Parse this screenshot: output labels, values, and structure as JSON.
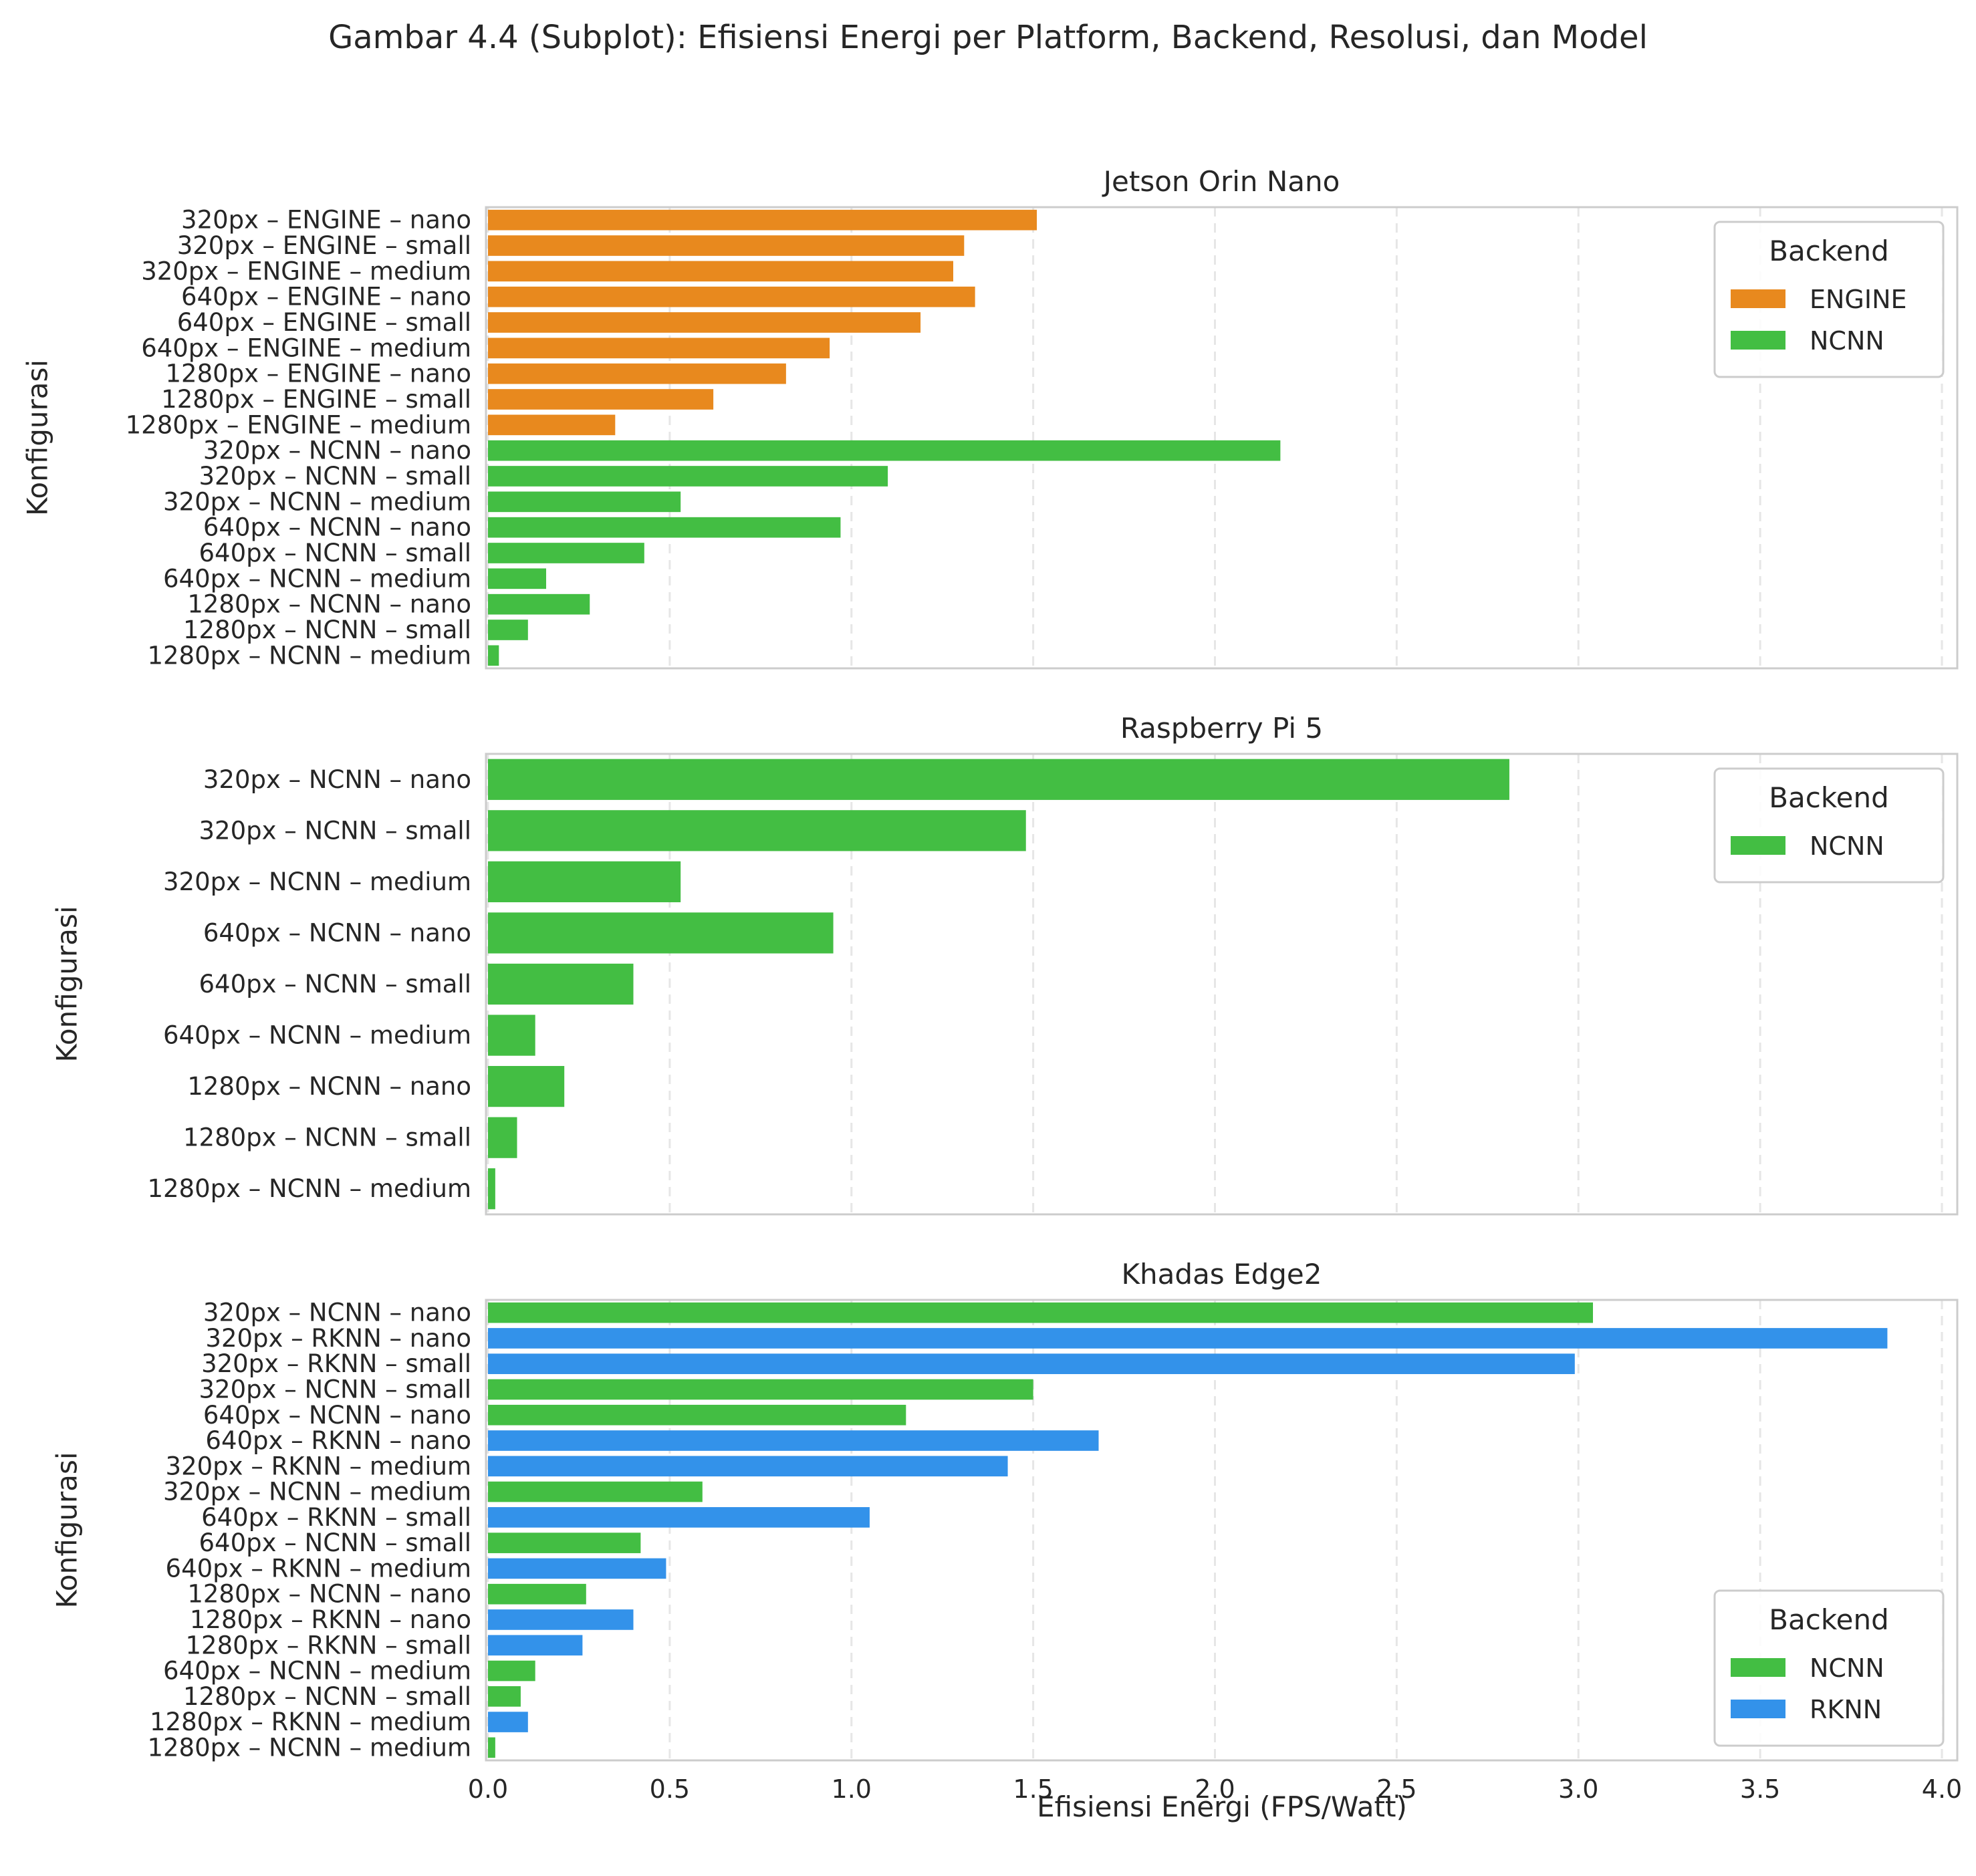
{
  "figure_title": "Gambar 4.4 (Subplot): Efisiensi Energi per Platform, Backend, Resolusi, dan Model",
  "xlabel": "Efisiensi Energi (FPS/Watt)",
  "colors": {
    "ENGINE": "#E8891E",
    "NCNN": "#43BE43",
    "RKNN": "#3392EA"
  },
  "chart_data": [
    {
      "type": "bar",
      "orientation": "horizontal",
      "title": "Jetson Orin Nano",
      "ylabel": "Konfigurasi",
      "xlim": [
        0,
        4.0
      ],
      "xticks": [
        "0.0",
        "0.5",
        "1.0",
        "1.5",
        "2.0",
        "2.5",
        "3.0",
        "3.5",
        "4.0"
      ],
      "grid": "x-dashed",
      "legend": {
        "title": "Backend",
        "position": "top-right",
        "entries": [
          "ENGINE",
          "NCNN"
        ]
      },
      "bars": [
        {
          "label": "320px – ENGINE – nano",
          "value": 1.51,
          "backend": "ENGINE"
        },
        {
          "label": "320px – ENGINE – small",
          "value": 1.31,
          "backend": "ENGINE"
        },
        {
          "label": "320px – ENGINE – medium",
          "value": 1.28,
          "backend": "ENGINE"
        },
        {
          "label": "640px – ENGINE – nano",
          "value": 1.34,
          "backend": "ENGINE"
        },
        {
          "label": "640px – ENGINE – small",
          "value": 1.19,
          "backend": "ENGINE"
        },
        {
          "label": "640px – ENGINE – medium",
          "value": 0.94,
          "backend": "ENGINE"
        },
        {
          "label": "1280px – ENGINE – nano",
          "value": 0.82,
          "backend": "ENGINE"
        },
        {
          "label": "1280px – ENGINE – small",
          "value": 0.62,
          "backend": "ENGINE"
        },
        {
          "label": "1280px – ENGINE – medium",
          "value": 0.35,
          "backend": "ENGINE"
        },
        {
          "label": "320px – NCNN – nano",
          "value": 2.18,
          "backend": "NCNN"
        },
        {
          "label": "320px – NCNN – small",
          "value": 1.1,
          "backend": "NCNN"
        },
        {
          "label": "320px – NCNN – medium",
          "value": 0.53,
          "backend": "NCNN"
        },
        {
          "label": "640px – NCNN – nano",
          "value": 0.97,
          "backend": "NCNN"
        },
        {
          "label": "640px – NCNN – small",
          "value": 0.43,
          "backend": "NCNN"
        },
        {
          "label": "640px – NCNN – medium",
          "value": 0.16,
          "backend": "NCNN"
        },
        {
          "label": "1280px – NCNN – nano",
          "value": 0.28,
          "backend": "NCNN"
        },
        {
          "label": "1280px – NCNN – small",
          "value": 0.11,
          "backend": "NCNN"
        },
        {
          "label": "1280px – NCNN – medium",
          "value": 0.03,
          "backend": "NCNN"
        }
      ]
    },
    {
      "type": "bar",
      "orientation": "horizontal",
      "title": "Raspberry Pi 5",
      "ylabel": "Konfigurasi",
      "xlim": [
        0,
        4.0
      ],
      "grid": "x-dashed",
      "legend": {
        "title": "Backend",
        "position": "top-right",
        "entries": [
          "NCNN"
        ]
      },
      "bars": [
        {
          "label": "320px – NCNN – nano",
          "value": 2.81,
          "backend": "NCNN"
        },
        {
          "label": "320px – NCNN – small",
          "value": 1.48,
          "backend": "NCNN"
        },
        {
          "label": "320px – NCNN – medium",
          "value": 0.53,
          "backend": "NCNN"
        },
        {
          "label": "640px – NCNN – nano",
          "value": 0.95,
          "backend": "NCNN"
        },
        {
          "label": "640px – NCNN – small",
          "value": 0.4,
          "backend": "NCNN"
        },
        {
          "label": "640px – NCNN – medium",
          "value": 0.13,
          "backend": "NCNN"
        },
        {
          "label": "1280px – NCNN – nano",
          "value": 0.21,
          "backend": "NCNN"
        },
        {
          "label": "1280px – NCNN – small",
          "value": 0.08,
          "backend": "NCNN"
        },
        {
          "label": "1280px – NCNN – medium",
          "value": 0.02,
          "backend": "NCNN"
        }
      ]
    },
    {
      "type": "bar",
      "orientation": "horizontal",
      "title": "Khadas Edge2",
      "ylabel": "Konfigurasi",
      "xlim": [
        0,
        4.0
      ],
      "grid": "x-dashed",
      "legend": {
        "title": "Backend",
        "position": "bottom-right",
        "entries": [
          "NCNN",
          "RKNN"
        ]
      },
      "bars": [
        {
          "label": "320px – NCNN – nano",
          "value": 3.04,
          "backend": "NCNN"
        },
        {
          "label": "320px – RKNN – nano",
          "value": 3.85,
          "backend": "RKNN"
        },
        {
          "label": "320px – RKNN – small",
          "value": 2.99,
          "backend": "RKNN"
        },
        {
          "label": "320px – NCNN – small",
          "value": 1.5,
          "backend": "NCNN"
        },
        {
          "label": "640px – NCNN – nano",
          "value": 1.15,
          "backend": "NCNN"
        },
        {
          "label": "640px – RKNN – nano",
          "value": 1.68,
          "backend": "RKNN"
        },
        {
          "label": "320px – RKNN – medium",
          "value": 1.43,
          "backend": "RKNN"
        },
        {
          "label": "320px – NCNN – medium",
          "value": 0.59,
          "backend": "NCNN"
        },
        {
          "label": "640px – RKNN – small",
          "value": 1.05,
          "backend": "RKNN"
        },
        {
          "label": "640px – NCNN – small",
          "value": 0.42,
          "backend": "NCNN"
        },
        {
          "label": "640px – RKNN – medium",
          "value": 0.49,
          "backend": "RKNN"
        },
        {
          "label": "1280px – NCNN – nano",
          "value": 0.27,
          "backend": "NCNN"
        },
        {
          "label": "1280px – RKNN – nano",
          "value": 0.4,
          "backend": "RKNN"
        },
        {
          "label": "1280px – RKNN – small",
          "value": 0.26,
          "backend": "RKNN"
        },
        {
          "label": "640px – NCNN – medium",
          "value": 0.13,
          "backend": "NCNN"
        },
        {
          "label": "1280px – NCNN – small",
          "value": 0.09,
          "backend": "NCNN"
        },
        {
          "label": "1280px – RKNN – medium",
          "value": 0.11,
          "backend": "RKNN"
        },
        {
          "label": "1280px – NCNN – medium",
          "value": 0.02,
          "backend": "NCNN"
        }
      ]
    }
  ]
}
